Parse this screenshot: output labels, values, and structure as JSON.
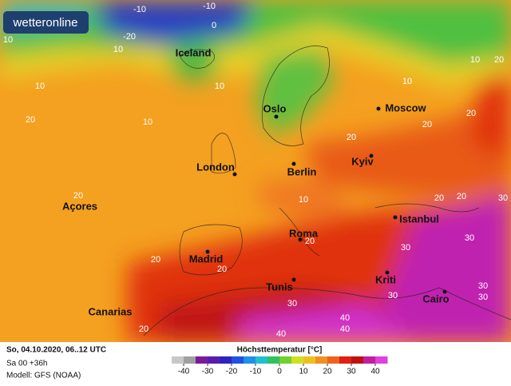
{
  "header": {
    "logo": "wetteronline"
  },
  "map": {
    "cities": [
      "Iceland",
      "Oslo",
      "Moscow",
      "London",
      "Berlin",
      "Kyiv",
      "Açores",
      "Istanbul",
      "Madrid",
      "Roma",
      "Tunis",
      "Kriti",
      "Cairo",
      "Canarias"
    ],
    "contour_labels": [
      -10,
      -10,
      0,
      -20,
      10,
      10,
      10,
      20,
      10,
      10,
      10,
      20,
      10,
      20,
      20,
      20,
      20,
      20,
      20,
      20,
      20,
      20,
      30,
      30,
      30,
      30,
      30,
      30,
      30,
      40,
      40,
      40,
      20,
      10
    ]
  },
  "footer": {
    "date": "So, 04.10.2020, 06..12 UTC",
    "run": "Sa 00 +36h",
    "model": "Modell: GFS (NOAA)"
  },
  "legend": {
    "title": "Höchsttemperatur [°C]",
    "ticks": [
      -40,
      -30,
      -20,
      -10,
      0,
      10,
      20,
      30,
      40
    ],
    "colors": [
      "#c8c8c8",
      "#a0a0a0",
      "#7a1a9a",
      "#5a1ab0",
      "#3020c0",
      "#2050e0",
      "#2090e8",
      "#20c0d0",
      "#30c060",
      "#70d030",
      "#d0e020",
      "#f0c020",
      "#f09020",
      "#f06020",
      "#e02010",
      "#c01010",
      "#c020a0",
      "#e040e0"
    ]
  }
}
